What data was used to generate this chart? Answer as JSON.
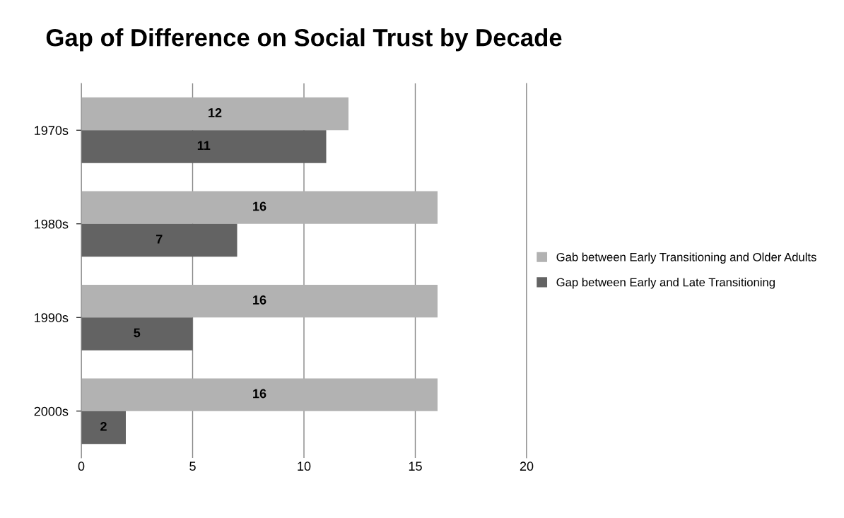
{
  "chart_data": {
    "type": "bar",
    "orientation": "horizontal",
    "title": "Gap of Difference on Social Trust by Decade",
    "categories": [
      "1970s",
      "1980s",
      "1990s",
      "2000s"
    ],
    "series": [
      {
        "name": "Gab between Early Transitioning and Older Adults",
        "color": "#b2b2b2",
        "values": [
          12,
          16,
          16,
          16
        ]
      },
      {
        "name": "Gap between Early and Late Transitioning",
        "color": "#636363",
        "values": [
          11,
          7,
          5,
          2
        ]
      }
    ],
    "xlim": [
      0,
      20
    ],
    "xticks": [
      0,
      5,
      10,
      15,
      20
    ],
    "grid": "x",
    "legend": "right",
    "data_labels": true
  }
}
